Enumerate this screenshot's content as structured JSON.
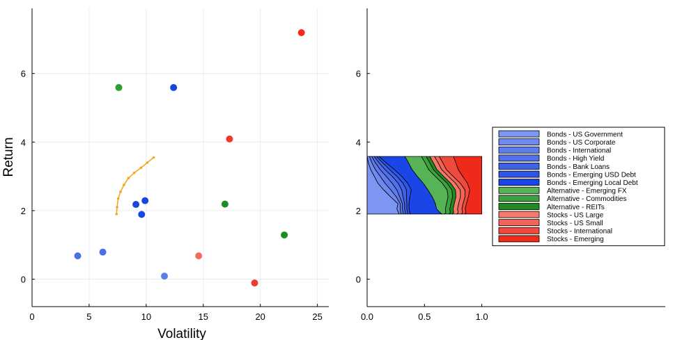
{
  "chart_data": [
    {
      "type": "scatter",
      "title": "",
      "xlabel": "Volatility",
      "ylabel": "Return",
      "xlim": [
        0,
        26
      ],
      "ylim": [
        -0.8,
        7.9
      ],
      "xticks": [
        0,
        5,
        10,
        15,
        20,
        25
      ],
      "yticks": [
        0,
        2,
        4,
        6
      ],
      "grid": true,
      "points": [
        {
          "x": 4.0,
          "y": 0.68,
          "color": "#4a6ee8"
        },
        {
          "x": 6.2,
          "y": 0.79,
          "color": "#4a6ee8"
        },
        {
          "x": 9.1,
          "y": 2.18,
          "color": "#1a46e0"
        },
        {
          "x": 9.6,
          "y": 1.89,
          "color": "#1a46e0"
        },
        {
          "x": 9.9,
          "y": 2.29,
          "color": "#1a46e0"
        },
        {
          "x": 11.6,
          "y": 0.09,
          "color": "#5a7ee8"
        },
        {
          "x": 12.4,
          "y": 5.59,
          "color": "#1a46e0"
        },
        {
          "x": 7.6,
          "y": 5.59,
          "color": "#2ca02c"
        },
        {
          "x": 16.9,
          "y": 2.19,
          "color": "#1e8c1e"
        },
        {
          "x": 22.1,
          "y": 1.29,
          "color": "#1e8c1e"
        },
        {
          "x": 14.6,
          "y": 0.68,
          "color": "#f26b5e"
        },
        {
          "x": 17.3,
          "y": 4.09,
          "color": "#f03a2a"
        },
        {
          "x": 19.5,
          "y": -0.11,
          "color": "#f03a2a"
        },
        {
          "x": 23.6,
          "y": 7.19,
          "color": "#f52a1a"
        }
      ],
      "frontier": {
        "color": "#f5a623",
        "x": [
          7.4,
          7.45,
          7.55,
          7.75,
          8.05,
          8.45,
          8.95,
          9.55,
          10.1,
          10.65
        ],
        "y": [
          1.9,
          2.1,
          2.35,
          2.55,
          2.75,
          2.95,
          3.1,
          3.25,
          3.4,
          3.55
        ]
      }
    },
    {
      "type": "area",
      "title": "",
      "xlabel": "",
      "ylabel": "",
      "xlim": [
        0,
        2.6
      ],
      "ylim": [
        -0.8,
        7.9
      ],
      "xticks": [
        0,
        0.5,
        1.0
      ],
      "xtick_labels": [
        "0.0",
        "0.5",
        "1.0"
      ],
      "yticks": [
        0,
        2,
        4,
        6
      ],
      "yticks_labels": [
        "0",
        "2",
        "4",
        "6"
      ],
      "grid": false,
      "legend_placement": "right",
      "y_levels": [
        1.9,
        1.94,
        2.05,
        2.2,
        2.4,
        2.6,
        2.8,
        3.0,
        3.2,
        3.4,
        3.58
      ],
      "series": [
        {
          "name": "Bonds - US Government",
          "color": "#7d96f2",
          "values": [
            0.28,
            0.28,
            0.27,
            0.28,
            0.21,
            0.14,
            0.09,
            0.06,
            0.03,
            0.01,
            0.0
          ]
        },
        {
          "name": "Bonds - US Corporate",
          "color": "#6e89f0",
          "values": [
            0.02,
            0.02,
            0.03,
            0.02,
            0.05,
            0.06,
            0.06,
            0.05,
            0.04,
            0.03,
            0.02
          ]
        },
        {
          "name": "Bonds - International",
          "color": "#5f7cee",
          "values": [
            0.02,
            0.02,
            0.02,
            0.02,
            0.03,
            0.05,
            0.06,
            0.05,
            0.04,
            0.03,
            0.02
          ]
        },
        {
          "name": "Bonds - High Yield",
          "color": "#5070ec",
          "values": [
            0.02,
            0.02,
            0.02,
            0.02,
            0.03,
            0.04,
            0.05,
            0.05,
            0.04,
            0.03,
            0.02
          ]
        },
        {
          "name": "Bonds - Bank Loans",
          "color": "#3f62ea",
          "values": [
            0.02,
            0.02,
            0.02,
            0.02,
            0.03,
            0.04,
            0.04,
            0.04,
            0.04,
            0.03,
            0.02
          ]
        },
        {
          "name": "Bonds - Emerging USD Debt",
          "color": "#2e55e8",
          "values": [
            0.02,
            0.02,
            0.02,
            0.02,
            0.03,
            0.04,
            0.04,
            0.04,
            0.04,
            0.03,
            0.02
          ]
        },
        {
          "name": "Bonds - Emerging Local Debt",
          "color": "#1a46e8",
          "values": [
            0.28,
            0.27,
            0.25,
            0.24,
            0.2,
            0.14,
            0.13,
            0.13,
            0.15,
            0.19,
            0.22
          ]
        },
        {
          "name": "Alternative - Emerging FX",
          "color": "#56b356",
          "values": [
            0.02,
            0.05,
            0.08,
            0.1,
            0.14,
            0.16,
            0.16,
            0.15,
            0.14,
            0.14,
            0.14
          ]
        },
        {
          "name": "Alternative - Commodities",
          "color": "#3fa03f",
          "values": [
            0.04,
            0.04,
            0.04,
            0.04,
            0.04,
            0.04,
            0.04,
            0.04,
            0.04,
            0.04,
            0.04
          ]
        },
        {
          "name": "Alternative - REITs",
          "color": "#1e8c1e",
          "values": [
            0.03,
            0.03,
            0.03,
            0.03,
            0.03,
            0.03,
            0.03,
            0.03,
            0.03,
            0.03,
            0.03
          ]
        },
        {
          "name": "Stocks - US Large",
          "color": "#f57a6e",
          "values": [
            0.04,
            0.04,
            0.04,
            0.04,
            0.04,
            0.04,
            0.04,
            0.04,
            0.04,
            0.04,
            0.04
          ]
        },
        {
          "name": "Stocks - US Small",
          "color": "#f26358",
          "values": [
            0.04,
            0.04,
            0.04,
            0.04,
            0.04,
            0.04,
            0.04,
            0.04,
            0.04,
            0.04,
            0.04
          ]
        },
        {
          "name": "Stocks - International",
          "color": "#f04a3c",
          "values": [
            0.03,
            0.03,
            0.03,
            0.03,
            0.03,
            0.04,
            0.06,
            0.08,
            0.1,
            0.11,
            0.12
          ]
        },
        {
          "name": "Stocks - Emerging",
          "color": "#f02a1a",
          "values": [
            0.15,
            0.14,
            0.15,
            0.14,
            0.12,
            0.1,
            0.12,
            0.16,
            0.2,
            0.22,
            0.24
          ]
        }
      ]
    }
  ]
}
